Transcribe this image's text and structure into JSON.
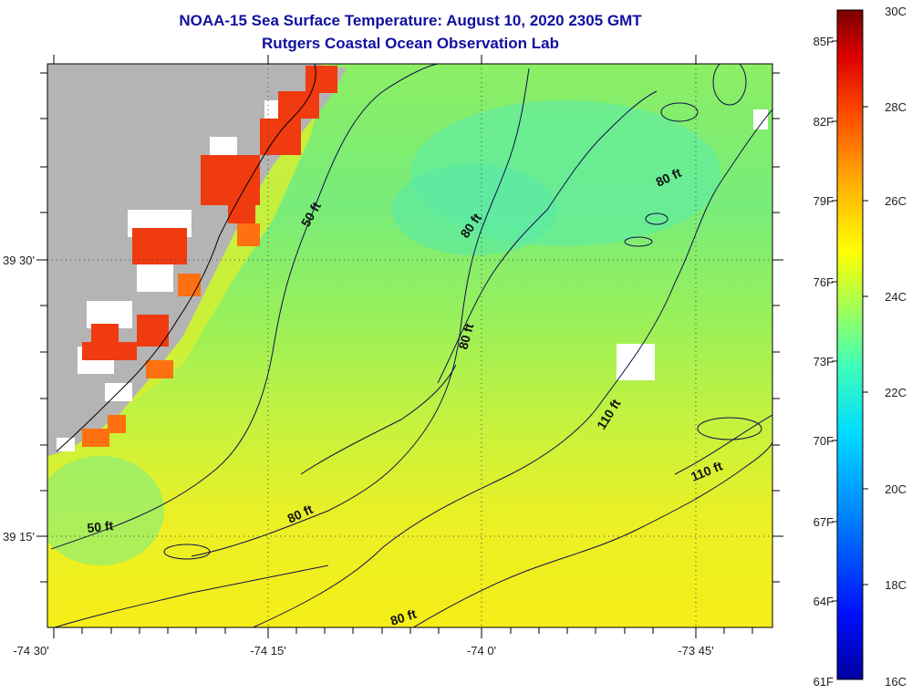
{
  "header": {
    "title": "NOAA-15 Sea Surface Temperature:  August 10, 2020 2305 GMT",
    "subtitle": "Rutgers Coastal Ocean Observation Lab"
  },
  "axes": {
    "longitude_labels": [
      "-74 30'",
      "-74 15'",
      "-74 0'",
      "-73 45'"
    ],
    "latitude_labels": [
      "39 30'",
      "39 15'"
    ]
  },
  "contour_labels": [
    "50 ft",
    "50 ft",
    "80 ft",
    "80 ft",
    "80 ft",
    "80 ft",
    "110 ft",
    "110 ft",
    "80 ft"
  ],
  "colorbar": {
    "fahrenheit": [
      "85F",
      "82F",
      "79F",
      "76F",
      "73F",
      "70F",
      "67F",
      "64F",
      "61F"
    ],
    "celsius": [
      "30C",
      "28C",
      "26C",
      "24C",
      "22C",
      "20C",
      "18C",
      "16C"
    ],
    "colors": [
      "#0000b0",
      "#0030ff",
      "#0090ff",
      "#00e0ff",
      "#40ffb0",
      "#a0ff50",
      "#ffff00",
      "#ffb000",
      "#ff5000",
      "#e00000",
      "#800000"
    ]
  },
  "colors": {
    "land": "#b4b4b4",
    "warm_coast": "#f03a10",
    "ocean_north": "#8af060",
    "ocean_mid": "#6cf098",
    "ocean_south": "#f4f020",
    "title_blue": "#1010a0"
  }
}
